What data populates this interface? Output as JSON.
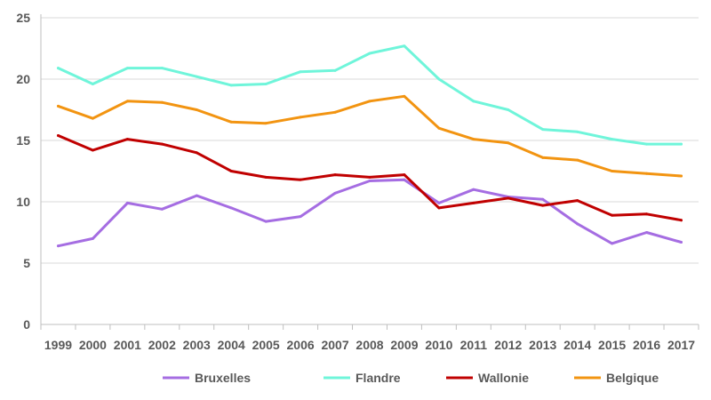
{
  "chart_data": {
    "type": "line",
    "title": "",
    "xlabel": "",
    "ylabel": "",
    "ylim": [
      0,
      25
    ],
    "yticks": [
      0,
      5,
      10,
      15,
      20,
      25
    ],
    "grid": true,
    "legend_position": "bottom",
    "categories": [
      "1999",
      "2000",
      "2001",
      "2002",
      "2003",
      "2004",
      "2005",
      "2006",
      "2007",
      "2008",
      "2009",
      "2010",
      "2011",
      "2012",
      "2013",
      "2014",
      "2015",
      "2016",
      "2017"
    ],
    "series": [
      {
        "name": "Bruxelles",
        "color": "#a56de2",
        "values": [
          6.4,
          7.0,
          9.9,
          9.4,
          10.5,
          9.5,
          8.4,
          8.8,
          10.7,
          11.7,
          11.8,
          9.9,
          11.0,
          10.4,
          10.2,
          8.2,
          6.6,
          7.5,
          6.7
        ]
      },
      {
        "name": "Flandre",
        "color": "#6ff5da",
        "values": [
          20.9,
          19.6,
          20.9,
          20.9,
          20.2,
          19.5,
          19.6,
          20.6,
          20.7,
          22.1,
          22.7,
          20.0,
          18.2,
          17.5,
          15.9,
          15.7,
          15.1,
          14.7,
          14.7
        ]
      },
      {
        "name": "Wallonie",
        "color": "#c00000",
        "values": [
          15.4,
          14.2,
          15.1,
          14.7,
          14.0,
          12.5,
          12.0,
          11.8,
          12.2,
          12.0,
          12.2,
          9.5,
          9.9,
          10.3,
          9.7,
          10.1,
          8.9,
          9.0,
          8.5
        ]
      },
      {
        "name": "Belgique",
        "color": "#f29411",
        "values": [
          17.8,
          16.8,
          18.2,
          18.1,
          17.5,
          16.5,
          16.4,
          16.9,
          17.3,
          18.2,
          18.6,
          16.0,
          15.1,
          14.8,
          13.6,
          13.4,
          12.5,
          12.3,
          12.1
        ]
      }
    ]
  }
}
